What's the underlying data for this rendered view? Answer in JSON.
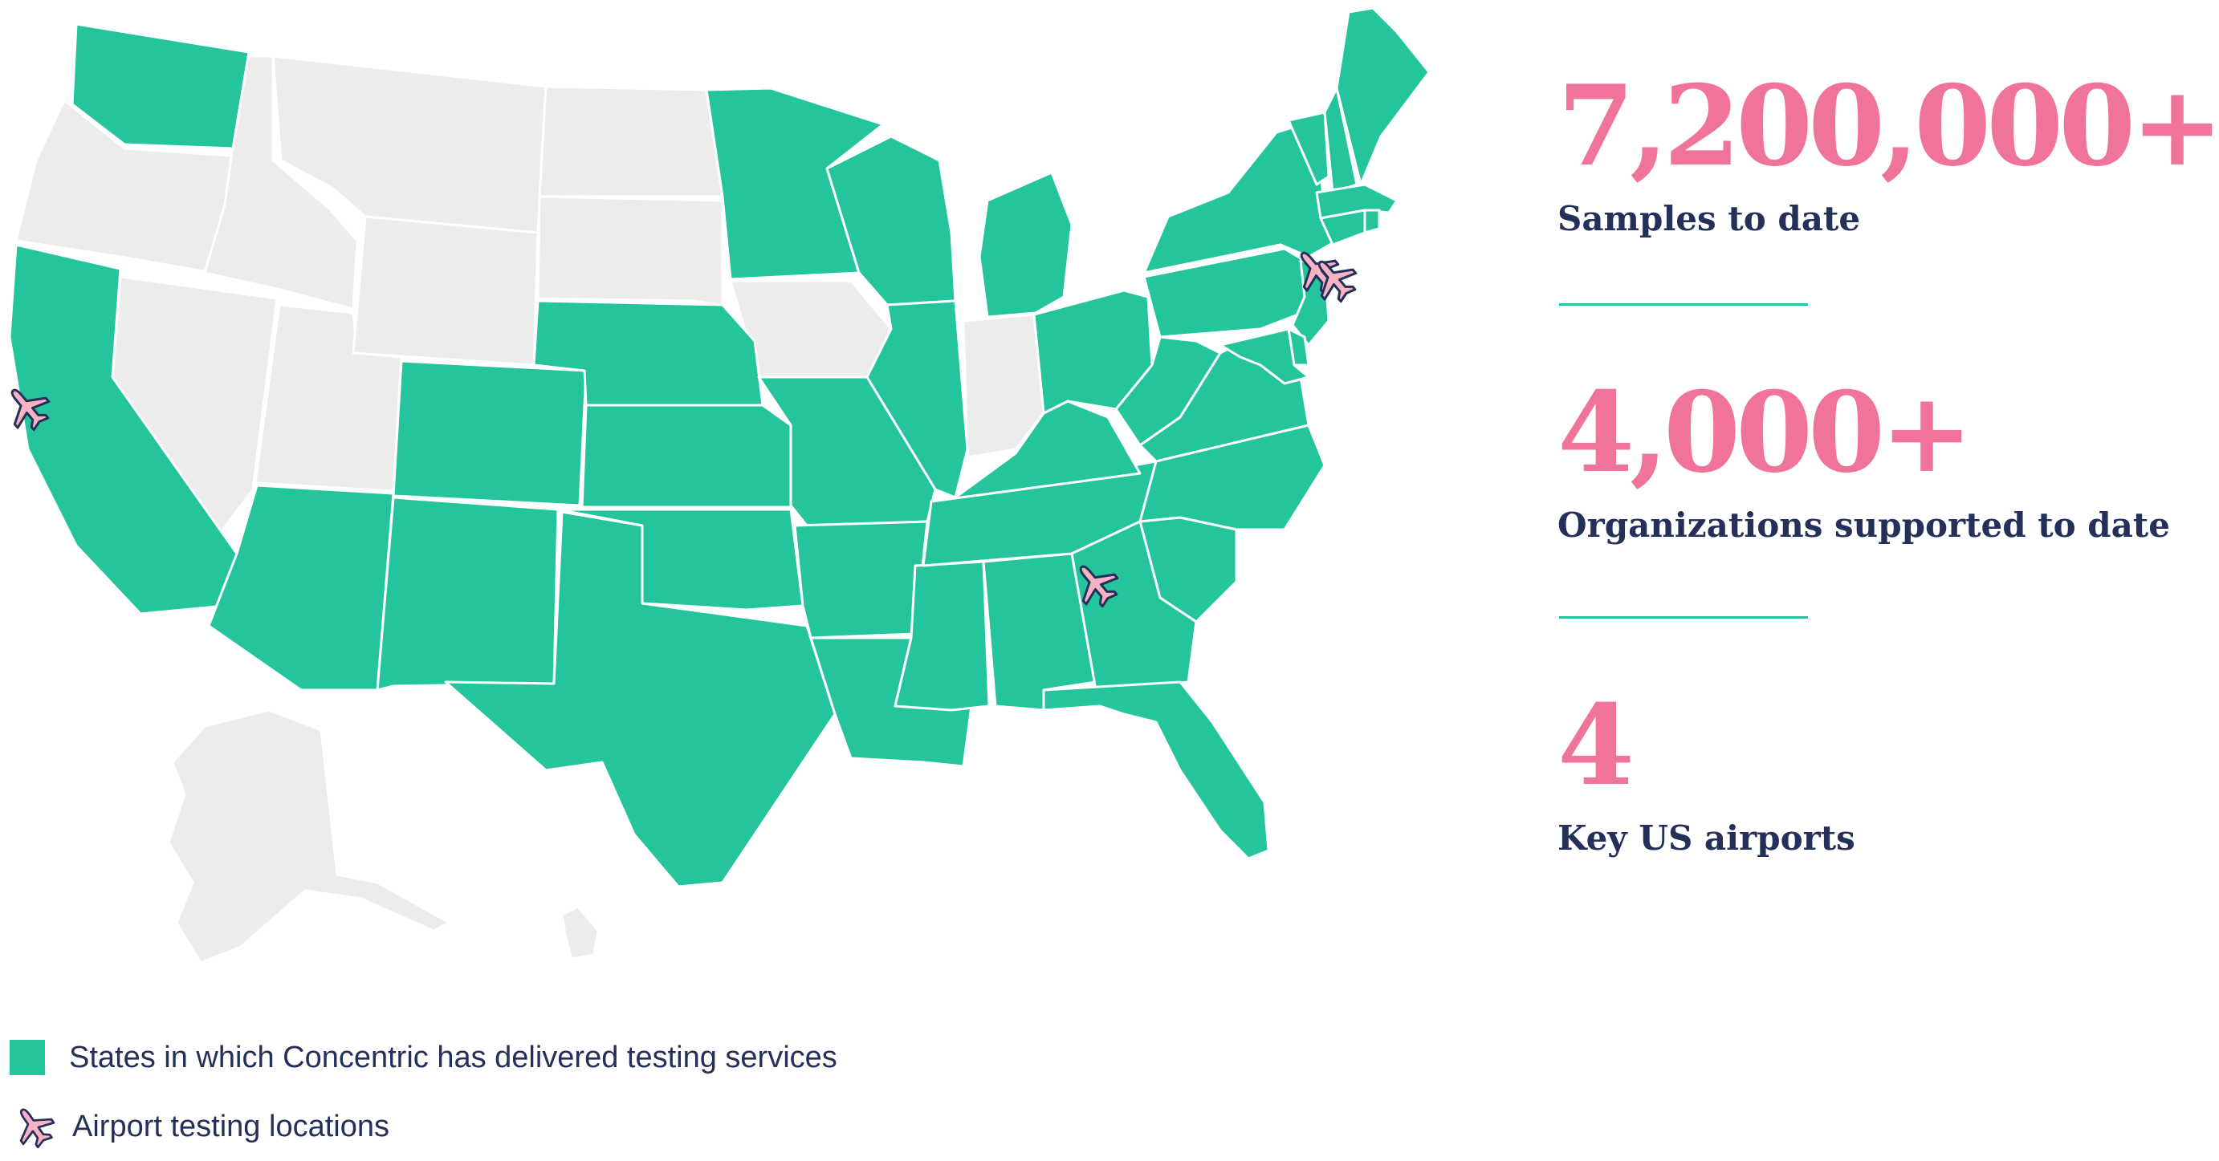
{
  "colors": {
    "served_state": "#24c59c",
    "other_state": "#ececec",
    "accent": "#f0749a",
    "text_dark": "#24305a",
    "plane_fill": "#f6b3c4",
    "plane_stroke": "#24305a"
  },
  "stats": [
    {
      "value": "7,200,000+",
      "label": "Samples to date"
    },
    {
      "value": "4,000+",
      "label": "Organizations supported to date"
    },
    {
      "value": "4",
      "label": "Key US airports"
    }
  ],
  "legend": {
    "states_label": "States in which Concentric has delivered testing services",
    "airports_label": "Airport testing locations",
    "airport_icon": "airplane-icon"
  },
  "map": {
    "served_states": [
      "WA",
      "CA",
      "AZ",
      "CO",
      "NM",
      "TX",
      "NE",
      "KS",
      "OK",
      "MN",
      "WI",
      "IL",
      "MO",
      "AR",
      "LA",
      "MS",
      "AL",
      "TN",
      "KY",
      "MI",
      "OH",
      "WV",
      "VA",
      "NC",
      "SC",
      "GA",
      "FL",
      "PA",
      "NY",
      "VT",
      "NH",
      "ME",
      "MA",
      "CT",
      "RI",
      "NJ",
      "DE",
      "MD"
    ],
    "other_states": [
      "OR",
      "ID",
      "MT",
      "NV",
      "UT",
      "WY",
      "ND",
      "SD",
      "IA",
      "IN",
      "AK",
      "HI"
    ],
    "airport_locations": [
      "San Francisco",
      "Atlanta",
      "New York",
      "Newark"
    ]
  }
}
